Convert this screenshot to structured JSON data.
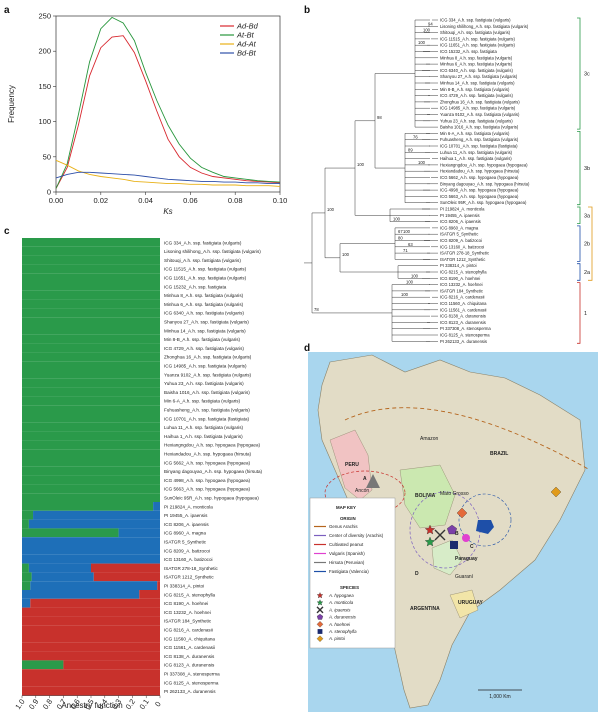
{
  "panels": {
    "a": "a",
    "b": "b",
    "c": "c",
    "d": "d"
  },
  "chart_data": [
    {
      "panel": "a",
      "type": "line",
      "xlabel": "Ks",
      "ylabel": "Frequency",
      "xlim": [
        0,
        0.1
      ],
      "ylim": [
        0,
        250
      ],
      "xticks": [
        "0.00",
        "0.02",
        "0.04",
        "0.06",
        "0.08",
        "0.10"
      ],
      "yticks": [
        "0",
        "50",
        "100",
        "150",
        "200",
        "250"
      ],
      "legend_position": "top-right",
      "x": [
        0,
        0.005,
        0.01,
        0.015,
        0.02,
        0.025,
        0.03,
        0.035,
        0.04,
        0.045,
        0.05,
        0.055,
        0.06,
        0.065,
        0.07,
        0.075,
        0.08,
        0.085,
        0.09,
        0.095,
        0.1
      ],
      "series": [
        {
          "name": "Ad-Bd",
          "color": "#d8282f",
          "values": [
            5,
            35,
            95,
            165,
            205,
            220,
            222,
            198,
            158,
            115,
            75,
            50,
            35,
            27,
            22,
            20,
            18,
            16,
            15,
            14,
            13
          ]
        },
        {
          "name": "At-Bt",
          "color": "#27963c",
          "values": [
            5,
            40,
            110,
            185,
            232,
            248,
            240,
            215,
            170,
            130,
            95,
            68,
            48,
            35,
            28,
            22,
            20,
            18,
            16,
            15,
            14
          ]
        },
        {
          "name": "Ad-At",
          "color": "#e8b117",
          "values": [
            45,
            38,
            30,
            25,
            22,
            20,
            18,
            15,
            14,
            13,
            12,
            12,
            11,
            11,
            10,
            10,
            10,
            9,
            9,
            9,
            8
          ]
        },
        {
          "name": "Bd-Bt",
          "color": "#2e4fa8",
          "values": [
            20,
            25,
            28,
            28,
            27,
            26,
            25,
            24,
            22,
            20,
            18,
            17,
            16,
            15,
            15,
            14,
            14,
            13,
            13,
            12,
            12
          ]
        }
      ]
    },
    {
      "panel": "c",
      "type": "bar",
      "orientation": "horizontal",
      "xlabel": "Ancestry function",
      "xticks": [
        "1.0",
        "0.9",
        "0.8",
        "0.7",
        "0.6",
        "0.5",
        "0.4",
        "0.3",
        "0.2",
        "0.1",
        "0"
      ],
      "xlim": [
        1,
        0
      ],
      "series_colors": {
        "green": "#2a9a4a",
        "blue": "#1e6fb8",
        "red": "#c8312c"
      },
      "categories": [
        "ICG 334_A.h. ssp. fastigiata (vulgaris)",
        "Lisoning shilihong_A.h. ssp. fastigiata (vulgaris)",
        "Shitouqi_A.h. ssp. fastigiata (vulgaris)",
        "ICG 11515_A.h. ssp. fastigiata (vulgaris)",
        "ICG 11651_A.h. ssp. fastigiata (vulgaris)",
        "ICG 15232_A.h. ssp. fastigiata",
        "Minhua 8_A.h. ssp. fastigiata (vulgaris)",
        "Minhua 6_A.h. ssp. fastigiata (vulgaris)",
        "ICG 6340_A.h. ssp. fastigiata (vulgaris)",
        "Shanyou 27_A.h. ssp. fastigiata (vulgaris)",
        "Minhua 14_A.h. ssp. fastigiata (vulgaris)",
        "Min 8-B_A.h. ssp. fastigiata (vulgaris)",
        "ICG 4729_A.h. ssp. fastigiata (vulgaris)",
        "Zhonghua 16_A.h. ssp. fastigiata (vulgaris)",
        "ICG 14985_A.h. ssp. fastigiata (vulgaris)",
        "Yuanza 9102_A.h. ssp. fastigiata (vulgaris)",
        "Yuhua 23_A.h. ssp. fastigiata (vulgaris)",
        "Baisha 1016_A.h. ssp. fastigiata (vulgaris)",
        "Min 6-A_A.h. ssp. fastigiata (vulgaris)",
        "Fuhuasheng_A.h. ssp. fastigiata (vulgaris)",
        "ICG 10701_A.h. ssp. fastigiata (fastigiata)",
        "Luhua 11_A.h. ssp. fastigiata (vulgaris)",
        "Haihua 1_A.h. ssp. fastigiata (vulgaris)",
        "Hexiangngdou_A.h. ssp. hypogaea (hypogaea)",
        "Hexiandadou_A.h. ssp. hypogaea (hirsuta)",
        "ICG 5662_A.h. ssp. hypogaea (hypogaea)",
        "Binyang dagouyao_A.h. ssp. hypogaea (hirsuta)",
        "ICG 4998_A.h. ssp. hypogaea (hypogaea)",
        "ICG 5663_A.h. ssp. hypogaea (hypogaea)",
        "SunOleic 95R_A.h. ssp. hypogaea (hypogaea)",
        "PI 219824_A. monticola",
        "PI 19455_A. ipaensis",
        "ICG 8206_A. ipaensis",
        "ICG 8960_A. magna",
        "ISATGR 5_Synthetic",
        "ICG 8209_A. batizocoi",
        "ICG 13160_A. batizocoi",
        "ISATGR 278-18_Synthetic",
        "ISATGR 1212_Synthetic",
        "PI 338314_A. pintoi",
        "ICG 8215_A. stenophylla",
        "ICG 8190_A. hoehnei",
        "ICG 13232_A. hoehnei",
        "ISATGR 184_Synthetic",
        "ICG 8216_A. cardenasii",
        "ICG 11560_A. chiquitana",
        "ICG 11561_A. cardenasii",
        "ICG 8138_A. duranensis",
        "ICG 8123_A. duranensis",
        "PI 337308_A. stenosperma",
        "ICG 8125_A. stenosperma",
        "PI 262133_A. duranensis"
      ],
      "values_green": [
        1,
        1,
        1,
        1,
        1,
        1,
        1,
        1,
        1,
        1,
        1,
        1,
        1,
        1,
        1,
        1,
        1,
        1,
        1,
        1,
        1,
        1,
        1,
        1,
        1,
        1,
        1,
        1,
        1,
        1,
        0.95,
        0.08,
        0.05,
        0.7,
        0,
        0,
        0,
        0.05,
        0.07,
        0.06,
        0,
        0,
        0,
        0,
        0,
        0,
        0,
        0,
        0.3,
        0,
        0,
        0
      ],
      "values_blue": [
        0,
        0,
        0,
        0,
        0,
        0,
        0,
        0,
        0,
        0,
        0,
        0,
        0,
        0,
        0,
        0,
        0,
        0,
        0,
        0,
        0,
        0,
        0,
        0,
        0,
        0,
        0,
        0,
        0,
        0,
        0.05,
        0.92,
        0.95,
        0.3,
        1,
        1,
        1,
        0.45,
        0.45,
        0.92,
        0.85,
        0.06,
        0,
        0,
        0,
        0,
        0,
        0,
        0,
        0,
        0,
        0
      ],
      "values_red": [
        0,
        0,
        0,
        0,
        0,
        0,
        0,
        0,
        0,
        0,
        0,
        0,
        0,
        0,
        0,
        0,
        0,
        0,
        0,
        0,
        0,
        0,
        0,
        0,
        0,
        0,
        0,
        0,
        0,
        0,
        0,
        0,
        0,
        0,
        0,
        0,
        0,
        0.5,
        0.48,
        0.02,
        0.15,
        0.94,
        1,
        1,
        1,
        1,
        1,
        1,
        0.7,
        1,
        1,
        1
      ]
    }
  ],
  "tree": {
    "clades": [
      "3c",
      "3b",
      "3a",
      "2b",
      "2a",
      "1"
    ],
    "supports": [
      "98",
      "100",
      "100",
      "100",
      "78",
      "94",
      "100",
      "100",
      "100",
      "89",
      "76",
      "100",
      "100",
      "80",
      "63",
      "67",
      "71",
      "100",
      "100",
      "100"
    ]
  },
  "map": {
    "countries": [
      "PERU",
      "BRAZIL",
      "BOLIVIA",
      "Paraguay",
      "URUGUAY",
      "ARGENTINA"
    ],
    "places": [
      "Amazon",
      "Mato Grosso",
      "Ancón",
      "Guaraní"
    ],
    "letters": [
      "A",
      "B",
      "C",
      "D"
    ],
    "scale": "1,000 Km",
    "key": {
      "title": "MAP KEY",
      "origin_title": "ORIGIN",
      "origin": [
        {
          "label": "Genus Arachis",
          "color": "#b5651d"
        },
        {
          "label": "Center of diversity (Arachis)",
          "color": "#7b5fbf"
        },
        {
          "label": "Cultivated peanut",
          "color": "#c8312c"
        },
        {
          "label": "Vulgaris (Spanish)",
          "color": "#e040d0"
        },
        {
          "label": "Hirsuta (Peruvian)",
          "color": "#777777"
        },
        {
          "label": "Fastigiata (Valencia)",
          "color": "#1e4fa8"
        }
      ],
      "species_title": "SPECIES",
      "species": [
        {
          "label": "A. hypogaea",
          "icon": "star-icon",
          "color": "#c8312c"
        },
        {
          "label": "A. monticola",
          "icon": "star-icon",
          "color": "#2a9a4a"
        },
        {
          "label": "A. ipaensis",
          "icon": "cross-icon",
          "color": "#333333"
        },
        {
          "label": "A. duranensis",
          "icon": "pentagon-icon",
          "color": "#7b3fa8"
        },
        {
          "label": "A. hoehnei",
          "icon": "diamond-icon",
          "color": "#e46a3a"
        },
        {
          "label": "A. stenophylla",
          "icon": "square-icon",
          "color": "#1b2a6e"
        },
        {
          "label": "A. pintoi",
          "icon": "diamond-icon",
          "color": "#e09a1a"
        }
      ]
    }
  }
}
